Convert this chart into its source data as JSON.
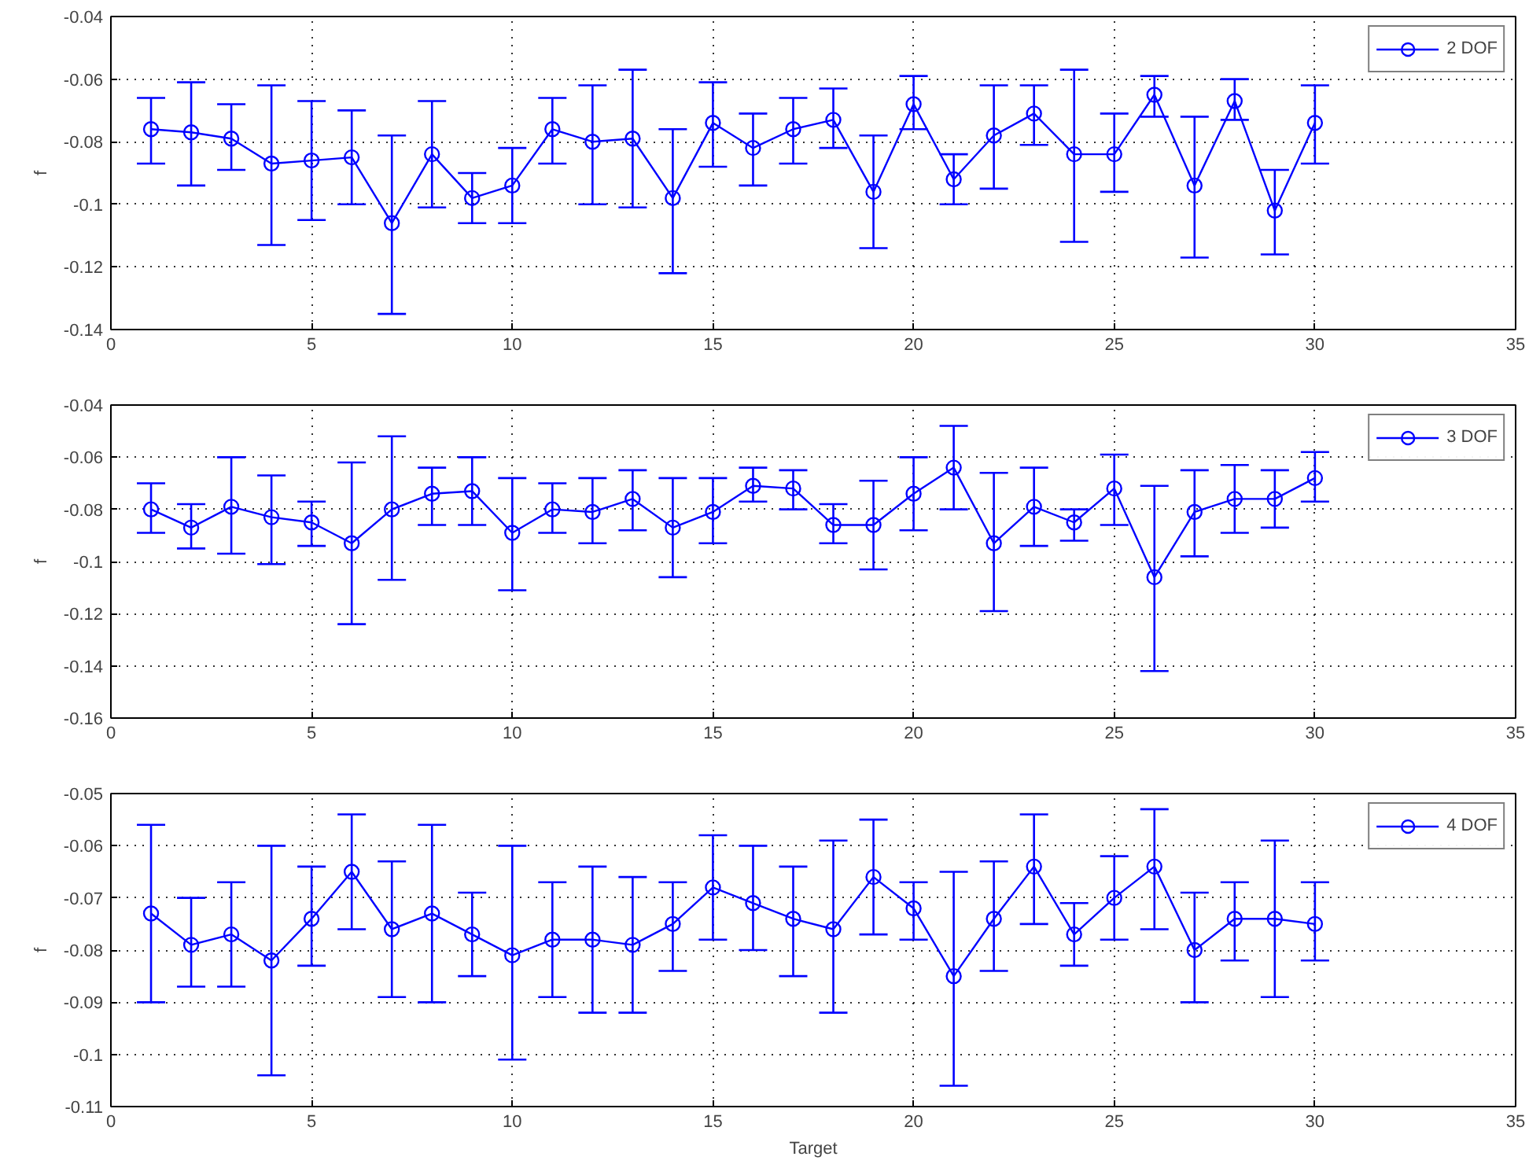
{
  "chart_data": [
    {
      "type": "line",
      "ylabel": "f",
      "x": [
        1,
        2,
        3,
        4,
        5,
        6,
        7,
        8,
        9,
        10,
        11,
        12,
        13,
        14,
        15,
        16,
        17,
        18,
        19,
        20,
        21,
        22,
        23,
        24,
        25,
        26,
        27,
        28,
        29,
        30
      ],
      "xlim": [
        0,
        35
      ],
      "xticks": [
        0,
        5,
        10,
        15,
        20,
        25,
        30,
        35
      ],
      "ylim": [
        -0.14,
        -0.04
      ],
      "yticks": [
        -0.14,
        -0.12,
        -0.1,
        -0.08,
        -0.06,
        -0.04
      ],
      "grid": true,
      "legend": "top right",
      "marker": "circle",
      "line_style": "solid",
      "series": [
        {
          "name": "2 DOF",
          "color": "#0000ff",
          "values": [
            -0.076,
            -0.077,
            -0.079,
            -0.087,
            -0.086,
            -0.085,
            -0.106,
            -0.084,
            -0.098,
            -0.094,
            -0.076,
            -0.08,
            -0.079,
            -0.098,
            -0.074,
            -0.082,
            -0.076,
            -0.073,
            -0.096,
            -0.068,
            -0.092,
            -0.078,
            -0.071,
            -0.084,
            -0.084,
            -0.065,
            -0.094,
            -0.067,
            -0.102,
            -0.074
          ],
          "errors": [
            [
              -0.087,
              -0.066
            ],
            [
              -0.094,
              -0.061
            ],
            [
              -0.089,
              -0.068
            ],
            [
              -0.113,
              -0.062
            ],
            [
              -0.105,
              -0.067
            ],
            [
              -0.1,
              -0.07
            ],
            [
              -0.135,
              -0.078
            ],
            [
              -0.101,
              -0.067
            ],
            [
              -0.106,
              -0.09
            ],
            [
              -0.106,
              -0.082
            ],
            [
              -0.087,
              -0.066
            ],
            [
              -0.1,
              -0.062
            ],
            [
              -0.101,
              -0.057
            ],
            [
              -0.122,
              -0.076
            ],
            [
              -0.088,
              -0.061
            ],
            [
              -0.094,
              -0.071
            ],
            [
              -0.087,
              -0.066
            ],
            [
              -0.082,
              -0.063
            ],
            [
              -0.114,
              -0.078
            ],
            [
              -0.076,
              -0.059
            ],
            [
              -0.1,
              -0.084
            ],
            [
              -0.095,
              -0.062
            ],
            [
              -0.081,
              -0.062
            ],
            [
              -0.112,
              -0.057
            ],
            [
              -0.096,
              -0.071
            ],
            [
              -0.072,
              -0.059
            ],
            [
              -0.117,
              -0.072
            ],
            [
              -0.073,
              -0.06
            ],
            [
              -0.116,
              -0.089
            ],
            [
              -0.087,
              -0.062
            ]
          ]
        }
      ]
    },
    {
      "type": "line",
      "ylabel": "f",
      "x": [
        1,
        2,
        3,
        4,
        5,
        6,
        7,
        8,
        9,
        10,
        11,
        12,
        13,
        14,
        15,
        16,
        17,
        18,
        19,
        20,
        21,
        22,
        23,
        24,
        25,
        26,
        27,
        28,
        29,
        30
      ],
      "xlim": [
        0,
        35
      ],
      "xticks": [
        0,
        5,
        10,
        15,
        20,
        25,
        30,
        35
      ],
      "ylim": [
        -0.16,
        -0.04
      ],
      "yticks": [
        -0.16,
        -0.14,
        -0.12,
        -0.1,
        -0.08,
        -0.06,
        -0.04
      ],
      "grid": true,
      "legend": "top right",
      "marker": "circle",
      "line_style": "solid",
      "series": [
        {
          "name": "3 DOF",
          "color": "#0000ff",
          "values": [
            -0.08,
            -0.087,
            -0.079,
            -0.083,
            -0.085,
            -0.093,
            -0.08,
            -0.074,
            -0.073,
            -0.089,
            -0.08,
            -0.081,
            -0.076,
            -0.087,
            -0.081,
            -0.071,
            -0.072,
            -0.086,
            -0.086,
            -0.074,
            -0.064,
            -0.093,
            -0.079,
            -0.085,
            -0.072,
            -0.106,
            -0.081,
            -0.076,
            -0.076,
            -0.068
          ],
          "errors": [
            [
              -0.089,
              -0.07
            ],
            [
              -0.095,
              -0.078
            ],
            [
              -0.097,
              -0.06
            ],
            [
              -0.101,
              -0.067
            ],
            [
              -0.094,
              -0.077
            ],
            [
              -0.124,
              -0.062
            ],
            [
              -0.107,
              -0.052
            ],
            [
              -0.086,
              -0.064
            ],
            [
              -0.086,
              -0.06
            ],
            [
              -0.111,
              -0.068
            ],
            [
              -0.089,
              -0.07
            ],
            [
              -0.093,
              -0.068
            ],
            [
              -0.088,
              -0.065
            ],
            [
              -0.106,
              -0.068
            ],
            [
              -0.093,
              -0.068
            ],
            [
              -0.077,
              -0.064
            ],
            [
              -0.08,
              -0.065
            ],
            [
              -0.093,
              -0.078
            ],
            [
              -0.103,
              -0.069
            ],
            [
              -0.088,
              -0.06
            ],
            [
              -0.08,
              -0.048
            ],
            [
              -0.119,
              -0.066
            ],
            [
              -0.094,
              -0.064
            ],
            [
              -0.092,
              -0.08
            ],
            [
              -0.086,
              -0.059
            ],
            [
              -0.142,
              -0.071
            ],
            [
              -0.098,
              -0.065
            ],
            [
              -0.089,
              -0.063
            ],
            [
              -0.087,
              -0.065
            ],
            [
              -0.077,
              -0.058
            ]
          ]
        }
      ]
    },
    {
      "type": "line",
      "ylabel": "f",
      "xlabel": "Target",
      "x": [
        1,
        2,
        3,
        4,
        5,
        6,
        7,
        8,
        9,
        10,
        11,
        12,
        13,
        14,
        15,
        16,
        17,
        18,
        19,
        20,
        21,
        22,
        23,
        24,
        25,
        26,
        27,
        28,
        29,
        30
      ],
      "xlim": [
        0,
        35
      ],
      "xticks": [
        0,
        5,
        10,
        15,
        20,
        25,
        30,
        35
      ],
      "ylim": [
        -0.11,
        -0.05
      ],
      "yticks": [
        -0.11,
        -0.1,
        -0.09,
        -0.08,
        -0.07,
        -0.06,
        -0.05
      ],
      "grid": true,
      "legend": "top right",
      "marker": "circle",
      "line_style": "solid",
      "series": [
        {
          "name": "4 DOF",
          "color": "#0000ff",
          "values": [
            -0.073,
            -0.079,
            -0.077,
            -0.082,
            -0.074,
            -0.065,
            -0.076,
            -0.073,
            -0.077,
            -0.081,
            -0.078,
            -0.078,
            -0.079,
            -0.075,
            -0.068,
            -0.071,
            -0.074,
            -0.076,
            -0.066,
            -0.072,
            -0.085,
            -0.074,
            -0.064,
            -0.077,
            -0.07,
            -0.064,
            -0.08,
            -0.074,
            -0.074,
            -0.075
          ],
          "errors": [
            [
              -0.09,
              -0.056
            ],
            [
              -0.087,
              -0.07
            ],
            [
              -0.087,
              -0.067
            ],
            [
              -0.104,
              -0.06
            ],
            [
              -0.083,
              -0.064
            ],
            [
              -0.076,
              -0.054
            ],
            [
              -0.089,
              -0.063
            ],
            [
              -0.09,
              -0.056
            ],
            [
              -0.085,
              -0.069
            ],
            [
              -0.101,
              -0.06
            ],
            [
              -0.089,
              -0.067
            ],
            [
              -0.092,
              -0.064
            ],
            [
              -0.092,
              -0.066
            ],
            [
              -0.084,
              -0.067
            ],
            [
              -0.078,
              -0.058
            ],
            [
              -0.08,
              -0.06
            ],
            [
              -0.085,
              -0.064
            ],
            [
              -0.092,
              -0.059
            ],
            [
              -0.077,
              -0.055
            ],
            [
              -0.078,
              -0.067
            ],
            [
              -0.106,
              -0.065
            ],
            [
              -0.084,
              -0.063
            ],
            [
              -0.075,
              -0.054
            ],
            [
              -0.083,
              -0.071
            ],
            [
              -0.078,
              -0.062
            ],
            [
              -0.076,
              -0.053
            ],
            [
              -0.09,
              -0.069
            ],
            [
              -0.082,
              -0.067
            ],
            [
              -0.089,
              -0.059
            ],
            [
              -0.082,
              -0.067
            ]
          ]
        }
      ]
    }
  ]
}
